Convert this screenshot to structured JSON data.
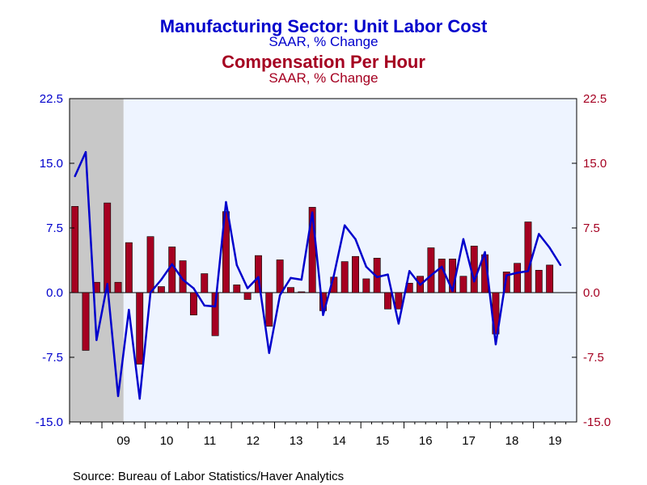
{
  "colors": {
    "series1": "#0000cc",
    "series2": "#a50021",
    "plot_bg": "#eef4ff",
    "recession": "#c8c8c8",
    "axis": "#000000"
  },
  "chart_data": {
    "type": "bar+line",
    "title_line1": "Manufacturing Sector: Unit Labor Cost",
    "subtitle_line1": "SAAR, % Change",
    "title_line2": "Compensation Per Hour",
    "subtitle_line2": "SAAR, % Change",
    "source": "Source:  Bureau of Labor Statistics/Haver Analytics",
    "x_start": 2008.25,
    "x_end": 2020.0,
    "ylim": [
      -15.0,
      22.5
    ],
    "y_ticks_left": [
      "22.5",
      "15.0",
      "7.5",
      "0.0",
      "-7.5",
      "-15.0"
    ],
    "y_ticks_right": [
      "22.5",
      "15.0",
      "7.5",
      "0.0",
      "-7.5",
      "-15.0"
    ],
    "y_tick_values": [
      22.5,
      15.0,
      7.5,
      0.0,
      -7.5,
      -15.0
    ],
    "x_tick_labels": [
      "09",
      "10",
      "11",
      "12",
      "13",
      "14",
      "15",
      "16",
      "17",
      "18",
      "19"
    ],
    "recession": [
      2008.25,
      2009.5
    ],
    "quarters": [
      "2008Q2",
      "2008Q3",
      "2008Q4",
      "2009Q1",
      "2009Q2",
      "2009Q3",
      "2009Q4",
      "2010Q1",
      "2010Q2",
      "2010Q3",
      "2010Q4",
      "2011Q1",
      "2011Q2",
      "2011Q3",
      "2011Q4",
      "2012Q1",
      "2012Q2",
      "2012Q3",
      "2012Q4",
      "2013Q1",
      "2013Q2",
      "2013Q3",
      "2013Q4",
      "2014Q1",
      "2014Q2",
      "2014Q3",
      "2014Q4",
      "2015Q1",
      "2015Q2",
      "2015Q3",
      "2015Q4",
      "2016Q1",
      "2016Q2",
      "2016Q3",
      "2016Q4",
      "2017Q1",
      "2017Q2",
      "2017Q3",
      "2017Q4",
      "2018Q1",
      "2018Q2",
      "2018Q3",
      "2018Q4",
      "2019Q1",
      "2019Q2",
      "2019Q3",
      "2019Q4"
    ],
    "series": [
      {
        "name": "Manufacturing Sector: Unit Labor Cost",
        "kind": "line",
        "values": [
          13.5,
          16.3,
          -5.5,
          1.0,
          -12.0,
          -2.0,
          -12.3,
          0.0,
          1.5,
          3.3,
          1.5,
          0.5,
          -1.5,
          -1.6,
          10.5,
          3.2,
          0.5,
          1.8,
          -7.0,
          -0.3,
          1.7,
          1.5,
          9.3,
          -2.6,
          2.0,
          7.8,
          6.2,
          3.0,
          1.8,
          2.1,
          -3.6,
          2.5,
          0.9,
          2.0,
          3.0,
          0.2,
          6.2,
          1.3,
          4.7,
          -6.0,
          2.0,
          2.3,
          2.5,
          6.8,
          5.2,
          3.2,
          null
        ]
      },
      {
        "name": "Compensation Per Hour",
        "kind": "bar",
        "values": [
          10.0,
          -6.7,
          1.2,
          10.4,
          1.2,
          5.8,
          -8.3,
          6.5,
          0.7,
          5.3,
          3.7,
          -2.6,
          2.2,
          -5.0,
          9.4,
          0.9,
          -0.8,
          4.3,
          -3.9,
          3.8,
          0.6,
          0.1,
          9.9,
          -2.1,
          1.8,
          3.6,
          4.2,
          1.6,
          4.0,
          -1.9,
          -1.9,
          1.1,
          1.9,
          5.2,
          3.9,
          3.9,
          1.9,
          5.4,
          4.4,
          -4.8,
          2.4,
          3.4,
          8.2,
          2.6,
          3.2,
          null,
          null
        ]
      }
    ]
  }
}
